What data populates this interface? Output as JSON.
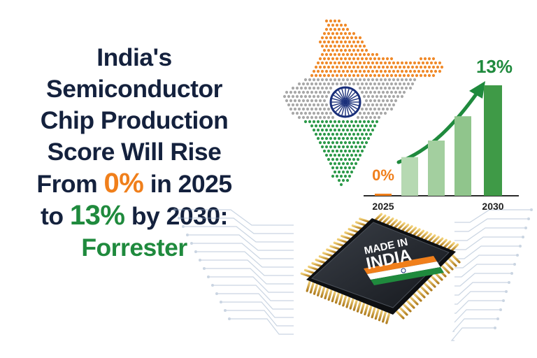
{
  "headline": {
    "line1": "India's",
    "line2": "Semiconductor",
    "line3": "Chip Production",
    "line4": "Score Will Rise",
    "line5_pre": "From ",
    "line5_hl": "0%",
    "line5_post": " in 2025",
    "line6_pre": "to ",
    "line6_hl": "13%",
    "line6_post": " by 2030:",
    "line7": "Forrester"
  },
  "chip": {
    "label_line1": "MADE IN",
    "label_line2": "INDIA"
  },
  "colors": {
    "navy": "#14213d",
    "saffron": "#f07f1b",
    "green": "#1f8a3d",
    "chakra": "#1a2f7a"
  },
  "chart_data": {
    "type": "bar",
    "categories": [
      "2025",
      "",
      "",
      "",
      "2030"
    ],
    "values": [
      0,
      0.35,
      0.5,
      0.72,
      1.0
    ],
    "labels": [
      "0%",
      "",
      "",
      "",
      "13%"
    ],
    "tick_labels": [
      "2025",
      "2030"
    ]
  }
}
